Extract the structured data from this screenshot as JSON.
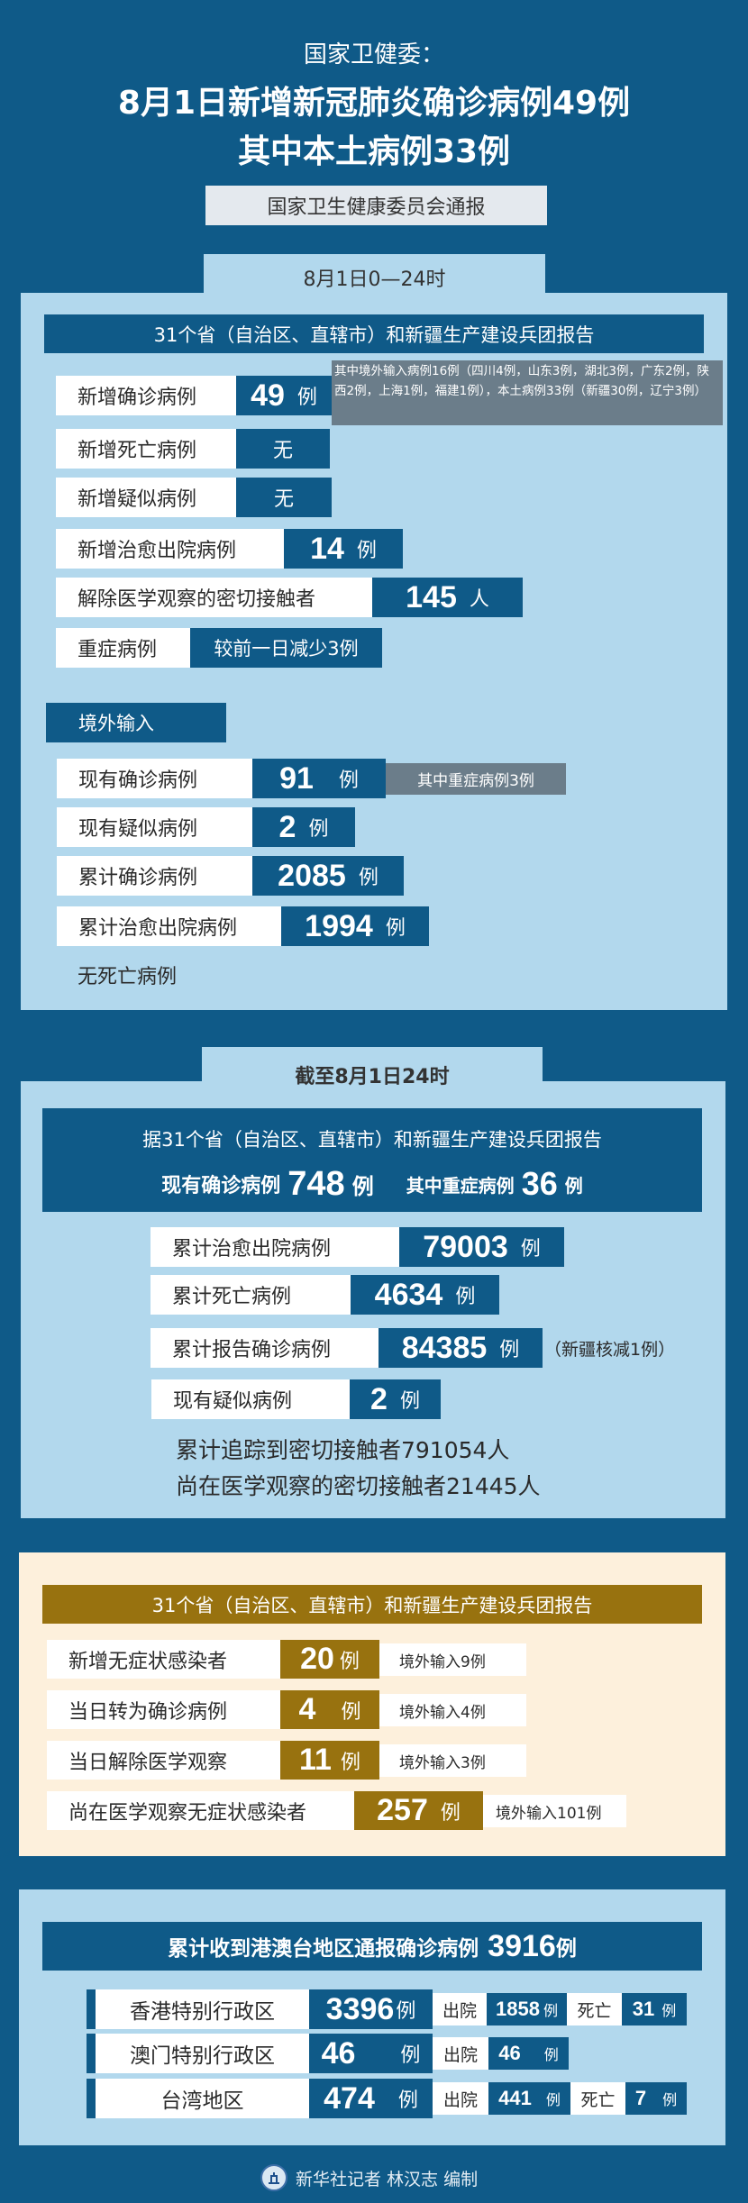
{
  "header": {
    "kicker": "国家卫健委：",
    "title_line1": "8月1日新增新冠肺炎确诊病例49例",
    "title_line2": "其中本土病例33例",
    "source": "国家卫生健康委员会通报"
  },
  "daily": {
    "tab": "8月1日0—24时",
    "bar": "31个省（自治区、直辖市）和新疆生产建设兵团报告",
    "rows": [
      {
        "label": "新增确诊病例",
        "value": "49",
        "unit": "例",
        "note": "其中境外输入病例16例（四川4例，山东3例，湖北3例，广东2例，陕西2例，上海1例，福建1例），本土病例33例（新疆30例，辽宁3例）"
      },
      {
        "label": "新增死亡病例",
        "value": "无"
      },
      {
        "label": "新增疑似病例",
        "value": "无"
      },
      {
        "label": "新增治愈出院病例",
        "value": "14",
        "unit": "例"
      },
      {
        "label": "解除医学观察的密切接触者",
        "value": "145",
        "unit": "人"
      },
      {
        "label": "重症病例",
        "value": "较前一日减少3例"
      }
    ],
    "imported": {
      "title": "境外输入",
      "rows": [
        {
          "label": "现有确诊病例",
          "value": "91",
          "unit": "例",
          "note": "其中重症病例3例"
        },
        {
          "label": "现有疑似病例",
          "value": "2",
          "unit": "例"
        },
        {
          "label": "累计确诊病例",
          "value": "2085",
          "unit": "例"
        },
        {
          "label": "累计治愈出院病例",
          "value": "1994",
          "unit": "例"
        }
      ],
      "footnote": "无死亡病例"
    }
  },
  "cumulative": {
    "tab": "截至8月1日24时",
    "bar_line1": "据31个省（自治区、直辖市）和新疆生产建设兵团报告",
    "current_label": "现有确诊病例",
    "current_value": "748",
    "current_unit": "例",
    "severe_label": "其中重症病例",
    "severe_value": "36",
    "severe_unit": "例",
    "rows": [
      {
        "label": "累计治愈出院病例",
        "value": "79003",
        "unit": "例"
      },
      {
        "label": "累计死亡病例",
        "value": "4634",
        "unit": "例"
      },
      {
        "label": "累计报告确诊病例",
        "value": "84385",
        "unit": "例",
        "note": "（新疆核减1例）"
      },
      {
        "label": "现有疑似病例",
        "value": "2",
        "unit": "例"
      }
    ],
    "contacts_traced": "累计追踪到密切接触者791054人",
    "contacts_observed": "尚在医学观察的密切接触者21445人"
  },
  "asymptomatic": {
    "bar": "31个省（自治区、直辖市）和新疆生产建设兵团报告",
    "rows": [
      {
        "label": "新增无症状感染者",
        "value": "20",
        "unit": "例",
        "note": "境外输入9例"
      },
      {
        "label": "当日转为确诊病例",
        "value": "4",
        "unit": "例",
        "note": "境外输入4例"
      },
      {
        "label": "当日解除医学观察",
        "value": "11",
        "unit": "例",
        "note": "境外输入3例"
      },
      {
        "label": "尚在医学观察无症状感染者",
        "value": "257",
        "unit": "例",
        "note": "境外输入101例"
      }
    ]
  },
  "hmt": {
    "title": "累计收到港澳台地区通报确诊病例",
    "total": "3916",
    "total_unit": "例",
    "discharged_label": "出院",
    "death_label": "死亡",
    "rows": [
      {
        "region": "香港特别行政区",
        "value": "3396",
        "unit": "例",
        "discharged": "1858",
        "discharged_unit": "例",
        "deaths": "31",
        "deaths_unit": "例"
      },
      {
        "region": "澳门特别行政区",
        "value": "46",
        "unit": "例",
        "discharged": "46",
        "discharged_unit": "例"
      },
      {
        "region": "台湾地区",
        "value": "474",
        "unit": "例",
        "discharged": "441",
        "discharged_unit": "例",
        "deaths": "7",
        "deaths_unit": "例"
      }
    ]
  },
  "footer": {
    "credit": "新华社记者 林汉志 编制",
    "logo": "xinhua-logo"
  },
  "colors": {
    "dark_blue": "#0f5a88",
    "light_blue": "#b2d8ed",
    "gold": "#98720f",
    "cream": "#fdf0dc",
    "note_gray": "#6b7d8a"
  }
}
